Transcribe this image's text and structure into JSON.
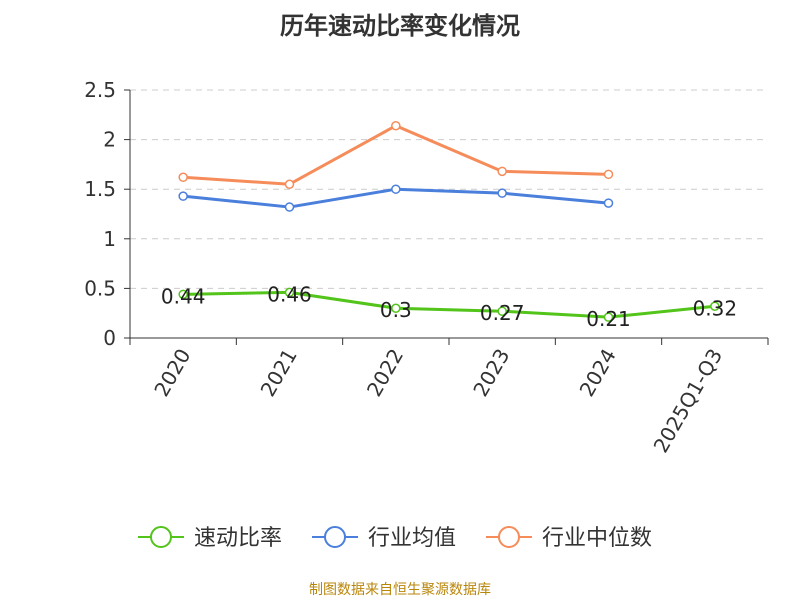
{
  "chart_data": {
    "type": "line",
    "title": "历年速动比率变化情况",
    "categories": [
      "2020",
      "2021",
      "2022",
      "2023",
      "2024",
      "2025Q1-Q3"
    ],
    "series": [
      {
        "name": "速动比率",
        "values": [
          0.44,
          0.46,
          0.3,
          0.27,
          0.21,
          0.32
        ],
        "color": "#52c41a",
        "data_labels": [
          "0.44",
          "0.46",
          "0.3",
          "0.27",
          "0.21",
          "0.32"
        ]
      },
      {
        "name": "行业均值",
        "values": [
          1.43,
          1.32,
          1.5,
          1.46,
          1.36,
          null
        ],
        "color": "#4a7fdc"
      },
      {
        "name": "行业中位数",
        "values": [
          1.62,
          1.55,
          2.14,
          1.68,
          1.65,
          null
        ],
        "color": "#f58c5a"
      }
    ],
    "yticks": [
      "0",
      "0.5",
      "1",
      "1.5",
      "2",
      "2.5"
    ],
    "ylim": [
      0,
      2.5
    ],
    "grid": true,
    "legend_position": "bottom"
  },
  "footer": {
    "source": "制图数据来自恒生聚源数据库"
  }
}
